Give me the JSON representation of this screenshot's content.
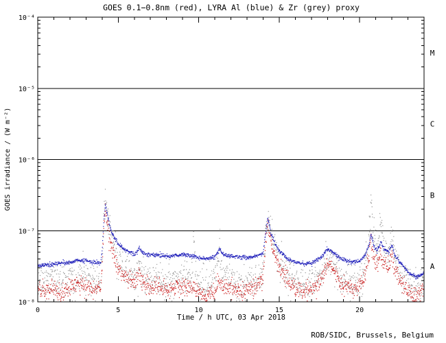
{
  "chart_data": {
    "type": "scatter",
    "title": "GOES 0.1−0.8nm (red), LYRA Al (blue) & Zr (grey) proxy",
    "xlabel": "Time / h UTC, 03 Apr 2018",
    "ylabel": "GOES irradiance / (W m⁻²)",
    "credit": "ROB/SIDC, Brussels, Belgium",
    "xlim": [
      0,
      24
    ],
    "ylim": [
      1e-08,
      0.0001
    ],
    "y_scale": "log",
    "grid": "off",
    "legend": "in-title",
    "x_major_ticks": [
      0,
      5,
      10,
      15,
      20
    ],
    "x_minor_step": 1,
    "y_tick_log10": [
      -4,
      -5,
      -6,
      -7,
      -8
    ],
    "y_tick_labels": [
      "10⁻⁴",
      "10⁻⁵",
      "10⁻⁶",
      "10⁻⁷",
      "10⁻⁸"
    ],
    "hlines_log10": [
      -5,
      -6,
      -7
    ],
    "flare_classes": [
      {
        "label": "M",
        "log10_y": -4.5
      },
      {
        "label": "C",
        "log10_y": -5.5
      },
      {
        "label": "B",
        "log10_y": -6.5
      },
      {
        "label": "A",
        "log10_y": -7.5
      }
    ],
    "series": [
      {
        "id": "zr-grey",
        "name": "LYRA Zr proxy (grey)",
        "color": "#9a9a9a",
        "spread_log10": 0.12,
        "x": [
          0,
          0.5,
          1,
          1.5,
          2,
          2.5,
          3,
          3.5,
          3.9,
          4.0,
          4.1,
          4.2,
          4.35,
          4.5,
          4.75,
          5,
          5.5,
          6,
          6.2,
          6.3,
          6.45,
          7,
          7.5,
          8,
          8.5,
          9,
          9.5,
          9.65,
          9.7,
          9.8,
          10,
          10.5,
          11,
          11.2,
          11.3,
          11.5,
          12,
          12.5,
          13,
          13.5,
          14,
          14.15,
          14.3,
          14.5,
          14.75,
          15,
          15.5,
          16,
          16.5,
          17,
          17.3,
          17.6,
          18,
          18.2,
          18.5,
          18.8,
          19,
          19.5,
          20,
          20.3,
          20.55,
          20.7,
          20.9,
          21.1,
          21.3,
          21.5,
          21.8,
          22,
          22.2,
          22.5,
          22.8,
          23,
          23.5,
          24
        ],
        "y": [
          2e-08,
          1.8e-08,
          2e-08,
          1.9e-08,
          2.1e-08,
          2.2e-08,
          2.1e-08,
          1.9e-08,
          2e-08,
          4e-08,
          1.5e-07,
          2.8e-07,
          1.7e-07,
          1e-07,
          6e-08,
          4e-08,
          2.8e-08,
          2.2e-08,
          2.8e-08,
          3.5e-08,
          2.5e-08,
          2e-08,
          2.1e-08,
          1.9e-08,
          2e-08,
          2.1e-08,
          2e-08,
          3e-08,
          9e-08,
          2.5e-08,
          1.8e-08,
          1.7e-08,
          1.9e-08,
          2.6e-08,
          7e-08,
          2.2e-08,
          2e-08,
          1.9e-08,
          1.9e-08,
          2e-08,
          2.4e-08,
          8e-08,
          1.6e-07,
          8e-08,
          5e-08,
          3.5e-08,
          2.4e-08,
          2e-08,
          1.8e-08,
          1.9e-08,
          2.1e-08,
          2.4e-08,
          4.5e-08,
          4e-08,
          3e-08,
          2.3e-08,
          2.1e-08,
          1.9e-08,
          2e-08,
          2.8e-08,
          6e-08,
          2.6e-07,
          8e-08,
          4.5e-08,
          1.3e-07,
          6e-08,
          4.5e-08,
          9e-08,
          4e-08,
          2.8e-08,
          2.2e-08,
          1.9e-08,
          1.6e-08,
          2e-08
        ]
      },
      {
        "id": "goes-red",
        "name": "GOES 0.1−0.8nm (red)",
        "color": "#cc2020",
        "spread_log10": 0.06,
        "x": [
          0,
          0.5,
          1,
          1.5,
          2,
          2.5,
          3,
          3.5,
          3.9,
          4.0,
          4.1,
          4.2,
          4.35,
          4.5,
          4.75,
          5,
          5.5,
          6,
          6.2,
          6.3,
          6.45,
          7,
          7.5,
          8,
          8.5,
          9,
          9.5,
          10,
          10.5,
          11,
          11.2,
          11.3,
          11.5,
          12,
          12.5,
          13,
          13.5,
          14,
          14.15,
          14.3,
          14.5,
          14.75,
          15,
          15.5,
          16,
          16.5,
          17,
          17.3,
          17.6,
          18,
          18.2,
          18.5,
          18.8,
          19,
          19.5,
          20,
          20.3,
          20.55,
          20.7,
          20.9,
          21.1,
          21.3,
          21.5,
          21.8,
          22,
          22.2,
          22.5,
          22.8,
          23,
          23.5,
          24
        ],
        "y": [
          1.6e-08,
          1.4e-08,
          1.5e-08,
          1.3e-08,
          1.6e-08,
          1.8e-08,
          1.7e-08,
          1.5e-08,
          1.6e-08,
          3e-08,
          1.1e-07,
          2e-07,
          1.2e-07,
          7e-08,
          4.5e-08,
          3e-08,
          2.2e-08,
          1.8e-08,
          2.2e-08,
          2.6e-08,
          2e-08,
          1.6e-08,
          1.7e-08,
          1.5e-08,
          1.6e-08,
          1.7e-08,
          1.5e-08,
          1.4e-08,
          1.2e-08,
          1.4e-08,
          1.8e-08,
          2.1e-08,
          1.6e-08,
          1.5e-08,
          1.4e-08,
          1.5e-08,
          1.6e-08,
          2e-08,
          7e-08,
          1.3e-07,
          7e-08,
          4.5e-08,
          3e-08,
          2e-08,
          1.6e-08,
          1.4e-08,
          1.5e-08,
          1.7e-08,
          2e-08,
          3.5e-08,
          3.2e-08,
          2.5e-08,
          1.9e-08,
          1.7e-08,
          1.5e-08,
          1.6e-08,
          2.2e-08,
          4e-08,
          8e-08,
          4e-08,
          3.2e-08,
          5e-08,
          3.5e-08,
          3e-08,
          4.5e-08,
          2.8e-08,
          2e-08,
          1.6e-08,
          1.4e-08,
          1.2e-08,
          1.5e-08
        ]
      },
      {
        "id": "al-blue",
        "name": "LYRA Al proxy (blue)",
        "color": "#2222bb",
        "spread_log10": 0.014,
        "x": [
          0,
          0.5,
          1,
          1.5,
          2,
          2.5,
          3,
          3.5,
          3.9,
          4.0,
          4.1,
          4.2,
          4.35,
          4.5,
          4.75,
          5,
          5.5,
          6,
          6.2,
          6.3,
          6.45,
          7,
          7.5,
          8,
          8.5,
          9,
          9.5,
          10,
          10.5,
          11,
          11.2,
          11.3,
          11.5,
          12,
          12.5,
          13,
          13.5,
          14,
          14.15,
          14.3,
          14.5,
          14.75,
          15,
          15.5,
          16,
          16.5,
          17,
          17.3,
          17.6,
          18,
          18.2,
          18.5,
          18.8,
          19,
          19.5,
          20,
          20.3,
          20.55,
          20.7,
          20.9,
          21.1,
          21.3,
          21.5,
          21.8,
          22,
          22.2,
          22.5,
          22.8,
          23,
          23.5,
          24
        ],
        "y": [
          3.2e-08,
          3.3e-08,
          3.4e-08,
          3.5e-08,
          3.6e-08,
          3.8e-08,
          3.8e-08,
          3.6e-08,
          3.5e-08,
          5e-08,
          1.3e-07,
          2.3e-07,
          1.6e-07,
          1.1e-07,
          8e-08,
          6.5e-08,
          5.2e-08,
          4.6e-08,
          5e-08,
          6e-08,
          5e-08,
          4.5e-08,
          4.6e-08,
          4.3e-08,
          4.5e-08,
          4.6e-08,
          4.4e-08,
          4.2e-08,
          4e-08,
          4.3e-08,
          5e-08,
          5.6e-08,
          4.6e-08,
          4.4e-08,
          4.3e-08,
          4.2e-08,
          4.3e-08,
          4.8e-08,
          9e-08,
          1.5e-07,
          9e-08,
          6.5e-08,
          5.2e-08,
          4.1e-08,
          3.6e-08,
          3.4e-08,
          3.5e-08,
          3.8e-08,
          4.2e-08,
          5.5e-08,
          5.2e-08,
          4.6e-08,
          4.1e-08,
          3.9e-08,
          3.6e-08,
          3.7e-08,
          4.4e-08,
          6e-08,
          9e-08,
          6e-08,
          5.2e-08,
          7e-08,
          5.5e-08,
          5e-08,
          6.2e-08,
          4.5e-08,
          3.6e-08,
          3e-08,
          2.6e-08,
          2.2e-08,
          2.5e-08
        ]
      }
    ]
  }
}
